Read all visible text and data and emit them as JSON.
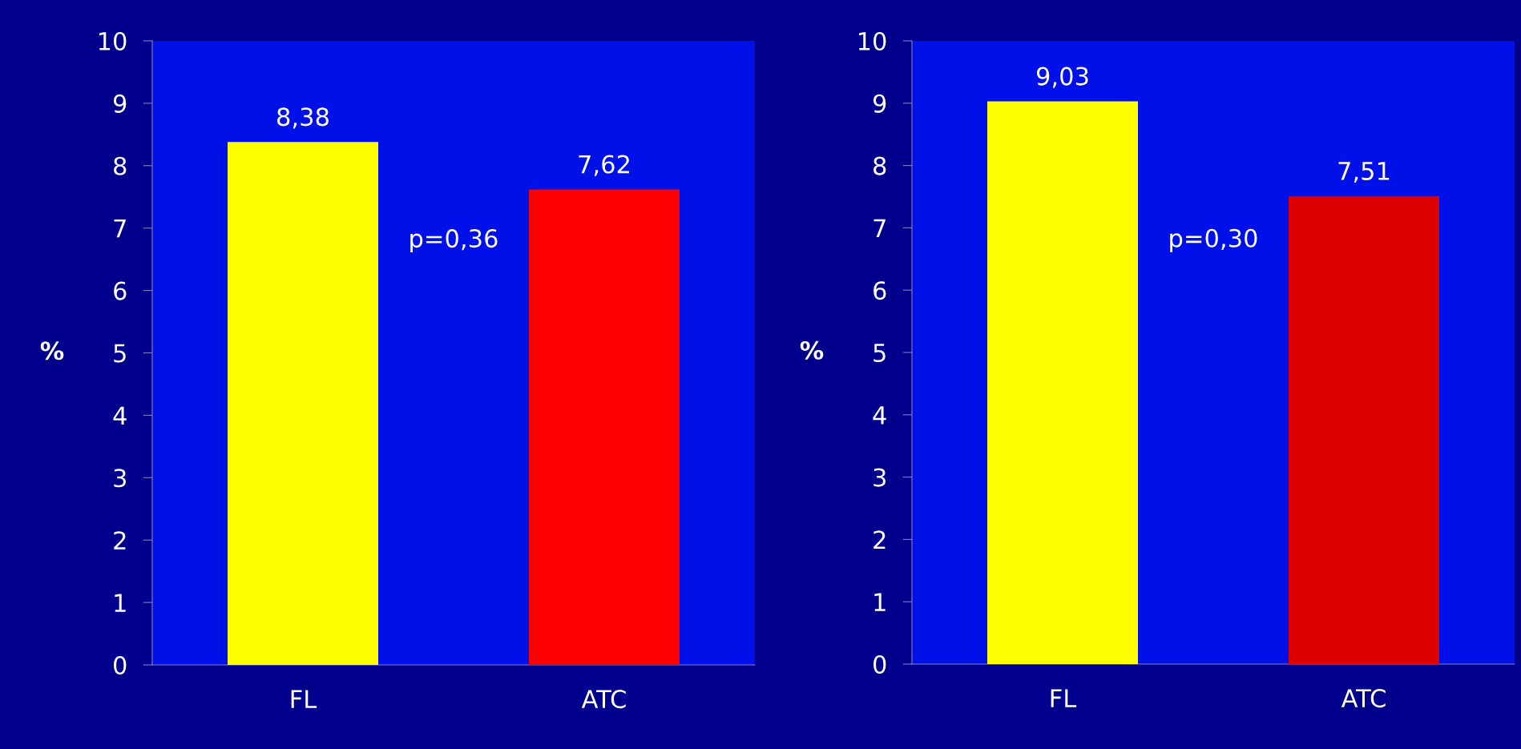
{
  "chart_data": [
    {
      "type": "bar",
      "categories": [
        "FL",
        "ATC"
      ],
      "values": [
        8.38,
        7.62
      ],
      "colors": [
        "#ffff00",
        "#ff0000"
      ],
      "value_labels": [
        "8,38",
        "7,62"
      ],
      "ylabel": "%",
      "ylim": [
        0,
        10
      ],
      "yticks": [
        0,
        1,
        2,
        3,
        4,
        5,
        6,
        7,
        8,
        9,
        10
      ],
      "grid": false,
      "annotations": [
        "p=0,36"
      ]
    },
    {
      "type": "bar",
      "categories": [
        "FL",
        "ATC"
      ],
      "values": [
        9.03,
        7.51
      ],
      "colors": [
        "#ffff00",
        "#dd0000"
      ],
      "value_labels": [
        "9,03",
        "7,51"
      ],
      "ylabel": "%",
      "ylim": [
        0,
        10
      ],
      "yticks": [
        0,
        1,
        2,
        3,
        4,
        5,
        6,
        7,
        8,
        9,
        10
      ],
      "grid": false,
      "annotations": [
        "p=0,30"
      ]
    }
  ]
}
